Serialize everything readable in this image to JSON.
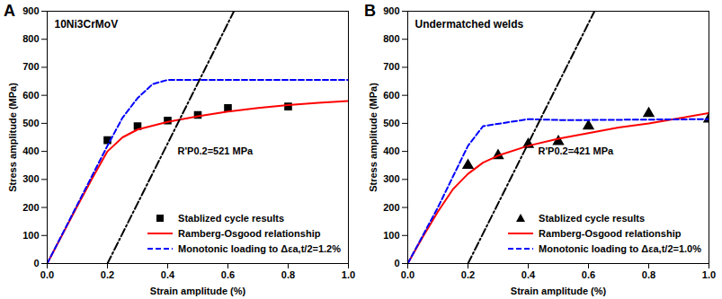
{
  "chart_data": [
    {
      "type": "line",
      "panel": "A",
      "title": "10Ni3CrMoV",
      "x_label": "Strain amplitude (%)",
      "y_label": "Stress amplitude (MPa)",
      "xlim": [
        0,
        1
      ],
      "ylim": [
        0,
        900
      ],
      "xticks": [
        {
          "value": 0,
          "label": "0.0"
        },
        0.2,
        0.4,
        0.6,
        0.8,
        {
          "value": 1,
          "label": "1.0"
        }
      ],
      "yticks": [
        0,
        100,
        200,
        300,
        400,
        500,
        600,
        700,
        800,
        900
      ],
      "grid": false,
      "legend": "lower right",
      "annotations": [
        {
          "text": "R'P0.2=521 MPa"
        }
      ],
      "series": [
        {
          "name": "Stablized cycle results",
          "type": "scatter",
          "marker": "square",
          "color": "#000000",
          "x": [
            0.2,
            0.3,
            0.4,
            0.5,
            0.6,
            0.8
          ],
          "values": [
            440,
            490,
            510,
            530,
            555,
            560
          ]
        },
        {
          "name": "Ramberg-Osgood relationship",
          "type": "line",
          "line_style": "solid",
          "color": "#ff0000",
          "x": [
            0,
            0.1,
            0.15,
            0.2,
            0.25,
            0.3,
            0.4,
            0.5,
            0.6,
            0.7,
            0.8,
            0.9,
            1.0
          ],
          "values": [
            0,
            205,
            305,
            400,
            450,
            478,
            505,
            525,
            542,
            555,
            565,
            573,
            580
          ]
        },
        {
          "name": "Monotonic loading to Δεa,t/2=1.2%",
          "type": "line",
          "line_style": "dashed",
          "color": "#0000ff",
          "x": [
            0,
            0.2,
            0.25,
            0.3,
            0.35,
            0.4,
            1.0
          ],
          "values": [
            0,
            420,
            520,
            590,
            640,
            655,
            655
          ]
        },
        {
          "type": "line",
          "line_style": "dashdot",
          "color": "#000000",
          "x": [
            0.2,
            0.62
          ],
          "values": [
            0,
            900
          ]
        }
      ]
    },
    {
      "type": "line",
      "panel": "B",
      "title": "Undermatched welds",
      "x_label": "Strain amplitude (%)",
      "y_label": "Stress amplitude (MPa)",
      "xlim": [
        0,
        1
      ],
      "ylim": [
        0,
        900
      ],
      "xticks": [
        {
          "value": 0,
          "label": "0.0"
        },
        0.2,
        0.4,
        0.6,
        0.8,
        {
          "value": 1,
          "label": "1.0"
        }
      ],
      "yticks": [
        0,
        100,
        200,
        300,
        400,
        500,
        600,
        700,
        800,
        900
      ],
      "grid": false,
      "legend": "lower right",
      "annotations": [
        {
          "text": "R'P0.2=421 MPa"
        }
      ],
      "series": [
        {
          "name": "Stablized cycle results",
          "type": "scatter",
          "marker": "triangle",
          "color": "#000000",
          "x": [
            0.2,
            0.3,
            0.4,
            0.5,
            0.6,
            0.8,
            1.0
          ],
          "values": [
            350,
            385,
            425,
            435,
            490,
            535,
            515
          ]
        },
        {
          "name": "Ramberg-Osgood relationship",
          "type": "line",
          "line_style": "solid",
          "color": "#ff0000",
          "x": [
            0,
            0.05,
            0.1,
            0.15,
            0.2,
            0.25,
            0.3,
            0.4,
            0.5,
            0.6,
            0.7,
            0.8,
            0.9,
            1.0
          ],
          "values": [
            0,
            95,
            185,
            265,
            320,
            360,
            385,
            420,
            445,
            465,
            485,
            500,
            518,
            537
          ]
        },
        {
          "name": "Monotonic loading to Δεa,t/2=1.0%",
          "type": "line",
          "line_style": "dashed",
          "color": "#0000ff",
          "x": [
            0,
            0.1,
            0.2,
            0.25,
            0.4,
            0.5,
            0.6,
            1.0
          ],
          "values": [
            0,
            200,
            420,
            490,
            515,
            512,
            512,
            515
          ]
        },
        {
          "type": "line",
          "line_style": "dashdot",
          "color": "#000000",
          "x": [
            0.2,
            0.62
          ],
          "values": [
            0,
            900
          ]
        }
      ]
    }
  ]
}
